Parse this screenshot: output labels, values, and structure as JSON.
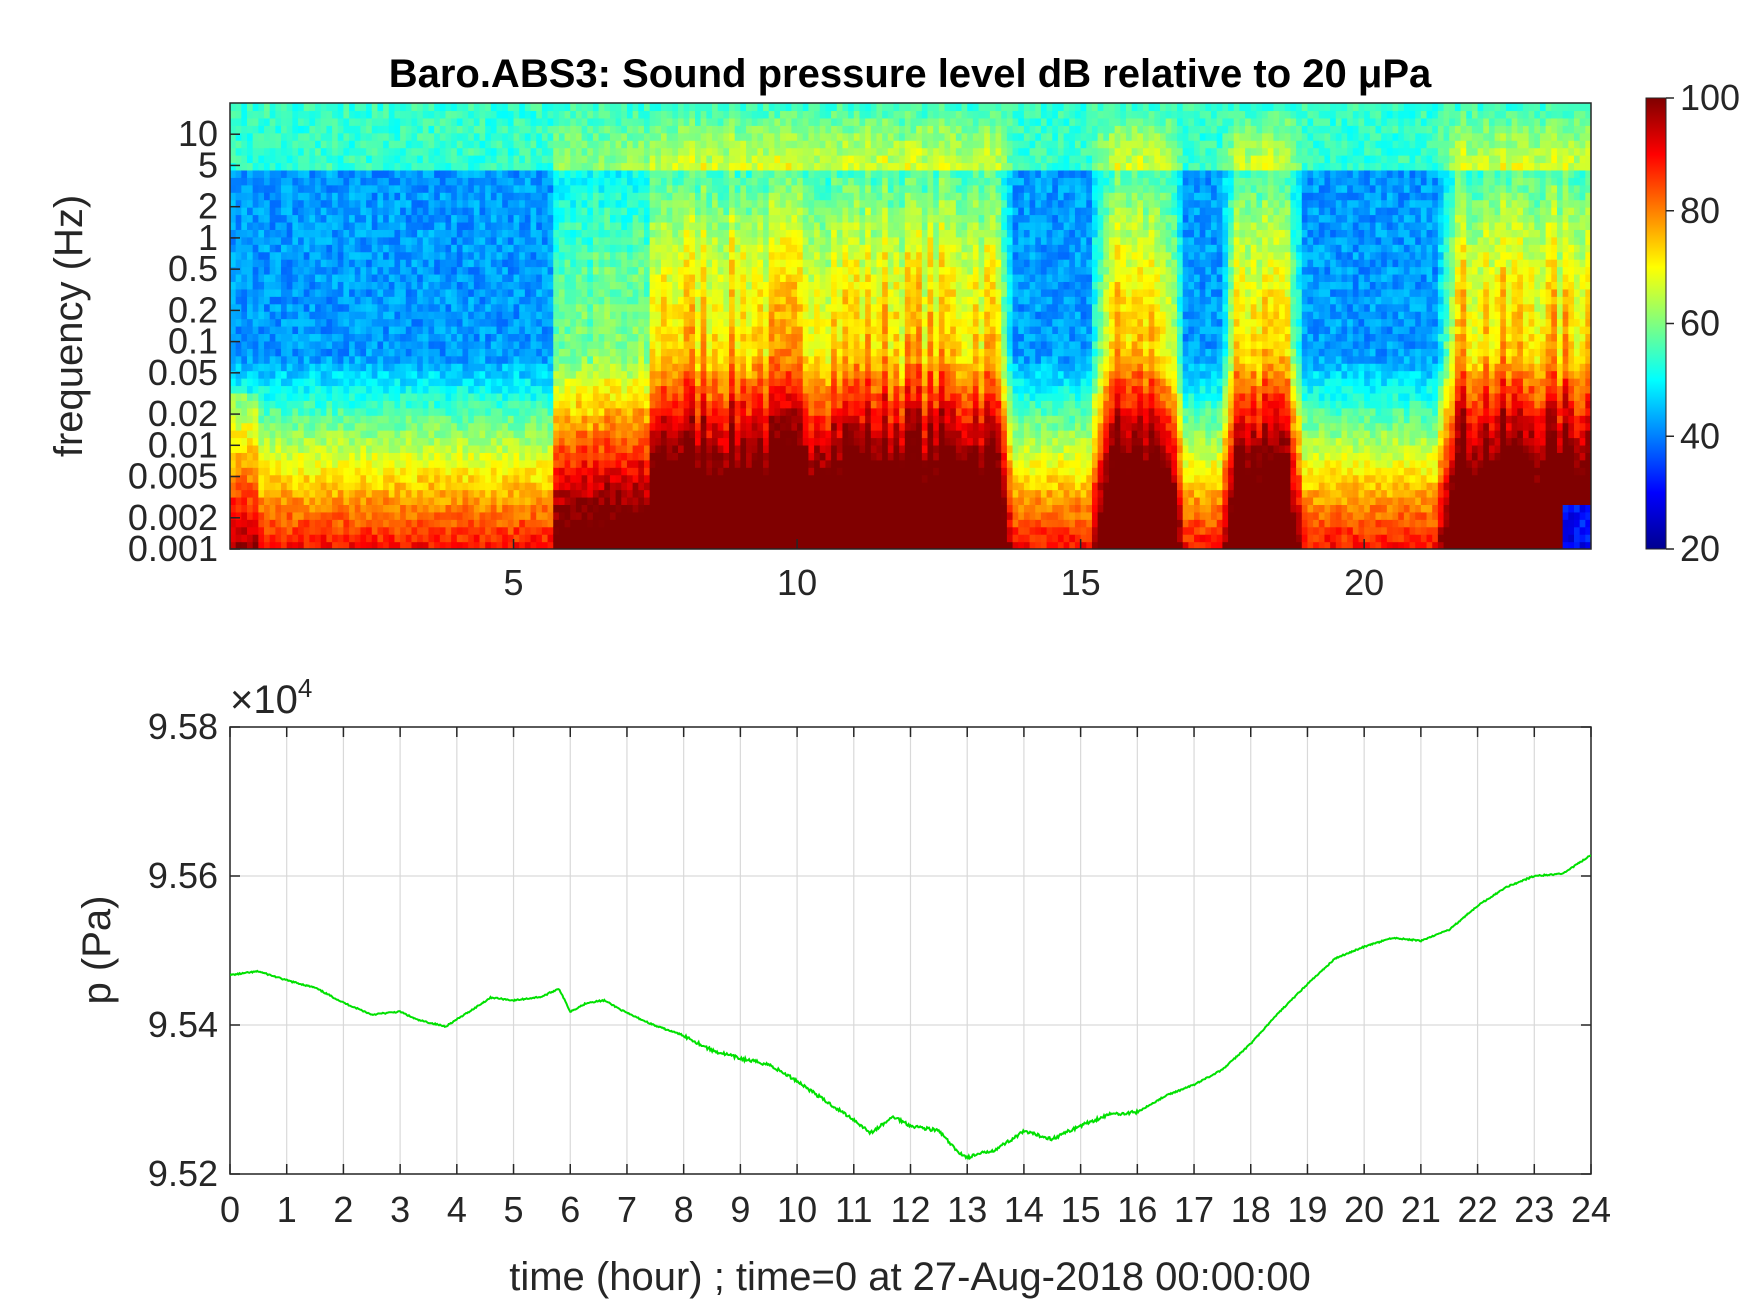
{
  "chart_data": [
    {
      "type": "heatmap",
      "title": "Baro.ABS3: Sound pressure level dB relative to 20 μPa",
      "ylabel": "frequency (Hz)",
      "xlabel": "",
      "x_ticks": [
        "5",
        "10",
        "15",
        "20"
      ],
      "x_tick_values": [
        5,
        10,
        15,
        20
      ],
      "xlim": [
        0,
        24
      ],
      "y_scale": "log",
      "ylim": [
        0.001,
        20
      ],
      "y_ticks": [
        "10",
        "5",
        "2",
        "1",
        "0.5",
        "0.2",
        "0.1",
        "0.05",
        "0.02",
        "0.01",
        "0.005",
        "0.002",
        "0.001"
      ],
      "y_tick_values": [
        10,
        5,
        2,
        1,
        0.5,
        0.2,
        0.1,
        0.05,
        0.02,
        0.01,
        0.005,
        0.002,
        0.001
      ],
      "colormap": "jet",
      "colorbar": {
        "range": [
          20,
          100
        ],
        "ticks": [
          "100",
          "80",
          "60",
          "40",
          "20"
        ],
        "tick_values": [
          100,
          80,
          60,
          40,
          20
        ]
      },
      "high_energy_periods_hours": [
        [
          7.5,
          13.5
        ],
        [
          15.5,
          16.5
        ],
        [
          17.8,
          18.6
        ],
        [
          21.6,
          24
        ]
      ],
      "grid": false
    },
    {
      "type": "line",
      "ylabel": "p (Pa)",
      "xlabel": "time (hour) ; time=0 at 27-Aug-2018 00:00:00",
      "exponent_label": "×10",
      "exponent_power": "4",
      "xlim": [
        0,
        24
      ],
      "ylim": [
        9.52,
        9.58
      ],
      "x_ticks": [
        "0",
        "1",
        "2",
        "3",
        "4",
        "5",
        "6",
        "7",
        "8",
        "9",
        "10",
        "11",
        "12",
        "13",
        "14",
        "15",
        "16",
        "17",
        "18",
        "19",
        "20",
        "21",
        "22",
        "23",
        "24"
      ],
      "y_ticks": [
        "9.58",
        "9.56",
        "9.54",
        "9.52"
      ],
      "y_tick_values": [
        9.58,
        9.56,
        9.54,
        9.52
      ],
      "grid": true,
      "line_color": "#00e000",
      "series": [
        {
          "x": [
            0,
            0.5,
            1,
            1.5,
            2,
            2.5,
            3,
            3.3,
            3.8,
            4.2,
            4.6,
            5,
            5.5,
            5.8,
            6,
            6.3,
            6.6,
            7,
            7.5,
            8,
            8.5,
            9,
            9.5,
            10,
            10.5,
            11,
            11.3,
            11.7,
            12,
            12.5,
            12.8,
            13,
            13.5,
            14,
            14.5,
            15,
            15.5,
            16,
            16.5,
            17,
            17.5,
            18,
            18.5,
            19,
            19.5,
            20,
            20.5,
            21,
            21.5,
            22,
            22.5,
            23,
            23.5,
            24
          ],
          "y": [
            9.5467,
            9.5472,
            9.546,
            9.545,
            9.543,
            9.5414,
            9.5418,
            9.5407,
            9.5398,
            9.5417,
            9.5437,
            9.5433,
            9.5438,
            9.5449,
            9.5418,
            9.543,
            9.5433,
            9.5416,
            9.5399,
            9.5386,
            9.5366,
            9.5355,
            9.5347,
            9.5325,
            9.5298,
            9.5273,
            9.5255,
            9.5277,
            9.5265,
            9.5258,
            9.5232,
            9.5222,
            9.5233,
            9.5257,
            9.5247,
            9.5265,
            9.528,
            9.5283,
            9.5305,
            9.532,
            9.534,
            9.5375,
            9.5417,
            9.5455,
            9.549,
            9.5505,
            9.5517,
            9.5513,
            9.5528,
            9.556,
            9.5585,
            9.56,
            9.5603,
            9.5628
          ]
        }
      ]
    }
  ]
}
